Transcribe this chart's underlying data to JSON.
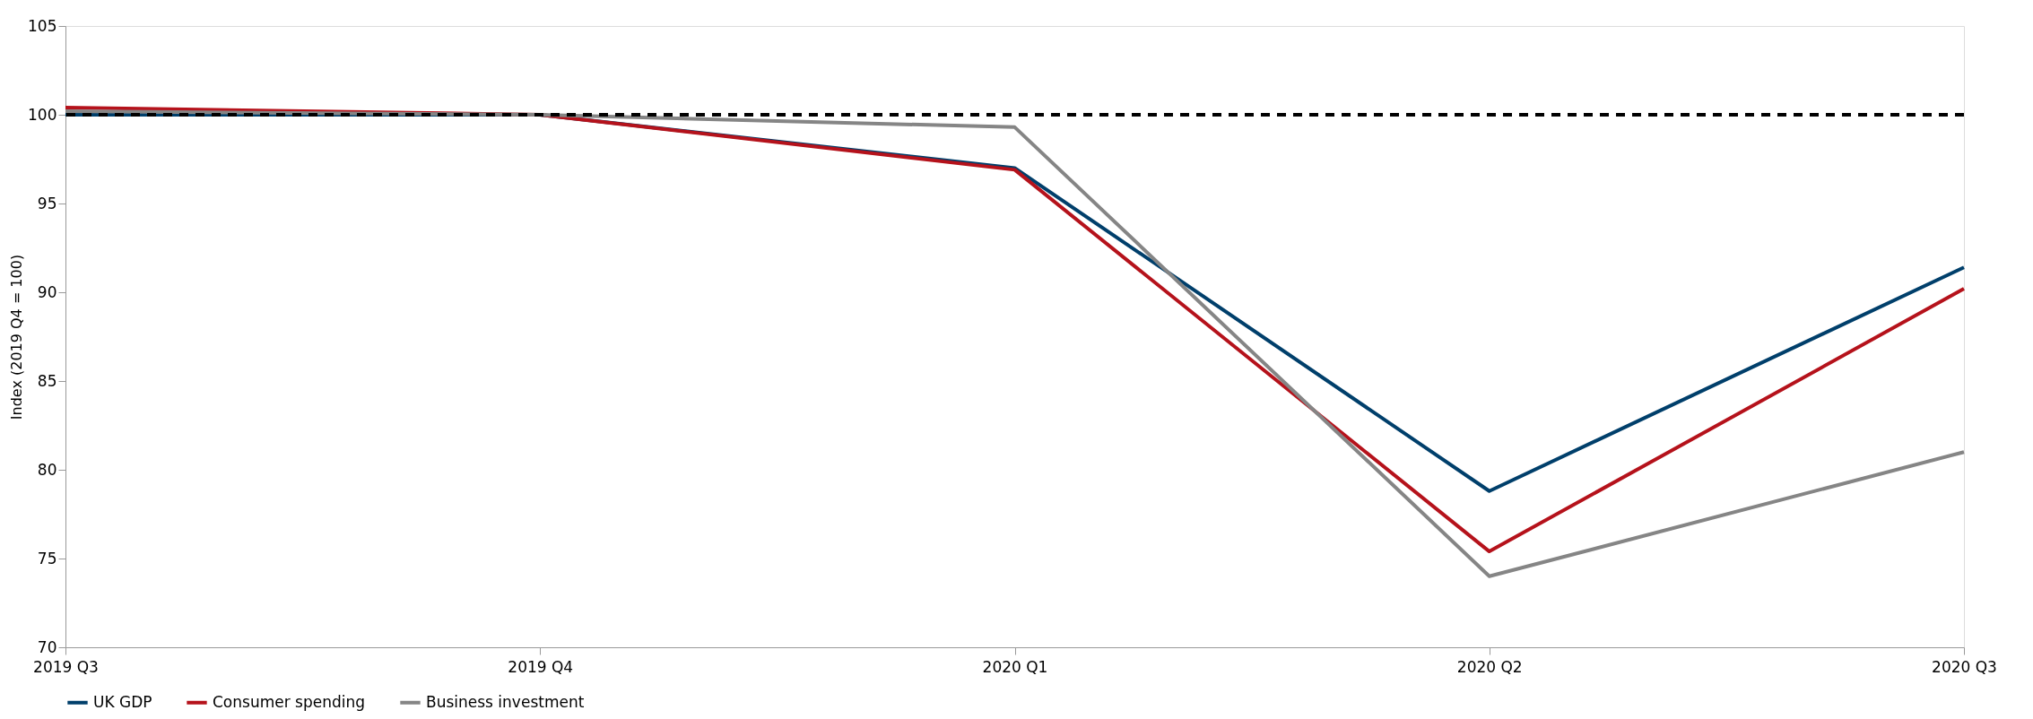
{
  "chart_data": {
    "type": "line",
    "ylabel": "Index (2019 Q4 = 100)",
    "categories": [
      "2019 Q3",
      "2019 Q4",
      "2020 Q1",
      "2020 Q2",
      "2020 Q3"
    ],
    "series": [
      {
        "name": "UK GDP",
        "color": "#003f6b",
        "values": [
          100.0,
          100.0,
          97.0,
          78.8,
          91.4
        ]
      },
      {
        "name": "Consumer spending",
        "color": "#b5121b",
        "values": [
          100.4,
          100.0,
          96.9,
          75.4,
          90.2
        ]
      },
      {
        "name": "Business investment",
        "color": "#858585",
        "values": [
          100.2,
          100.0,
          99.3,
          74.0,
          81.0
        ]
      }
    ],
    "ylim": [
      70,
      105
    ],
    "yticks": [
      70,
      75,
      80,
      85,
      90,
      95,
      100,
      105
    ],
    "ref_lines": [
      {
        "axis": "y",
        "value": 100,
        "color": "#000000",
        "line_style": "dashed"
      }
    ],
    "grid": false,
    "legend": "bottom",
    "line_style": "solid",
    "marker": "none"
  }
}
